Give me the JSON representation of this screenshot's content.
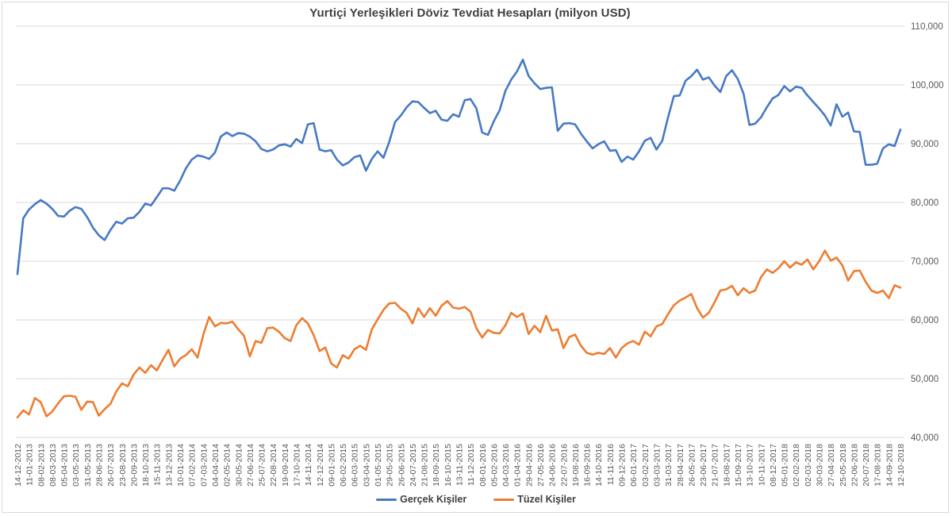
{
  "title": "Yurtiçi Yerleşikleri Döviz Tevdiat Hesapları (milyon USD)",
  "colors": {
    "series1": "#4779c4",
    "series2": "#ED7D31",
    "gridline": "#d9d9d9",
    "title_text": "#404040",
    "axis_text": "#595959",
    "background": "#ffffff"
  },
  "legend": {
    "position": "bottom",
    "items": [
      {
        "label": "Gerçek Kişiler",
        "color": "#4779c4"
      },
      {
        "label": "Tüzel Kişiler",
        "color": "#ED7D31"
      }
    ]
  },
  "y_axis": {
    "side": "right",
    "min": 40000,
    "max": 110000,
    "step": 10000,
    "tick_labels": [
      "40,000",
      "50,000",
      "60,000",
      "70,000",
      "80,000",
      "90,000",
      "100,000",
      "110,000"
    ]
  },
  "chart_data": {
    "type": "line",
    "title": "Yurtiçi Yerleşikleri Döviz Tevdiat Hesapları (milyon USD)",
    "xlabel": "",
    "ylabel": "",
    "ylim": [
      40000,
      110000
    ],
    "grid": true,
    "legend_position": "bottom",
    "x_tick_labels": [
      "14-12-2012",
      "11-01-2013",
      "08-02-2013",
      "08-03-2013",
      "05-04-2013",
      "03-05-2013",
      "31-05-2013",
      "28-06-2013",
      "26-07-2013",
      "23-08-2013",
      "20-09-2013",
      "18-10-2013",
      "15-11-2013",
      "13-12-2013",
      "10-01-2014",
      "07-02-2014",
      "07-03-2014",
      "04-04-2014",
      "02-05-2014",
      "30-05-2014",
      "27-06-2014",
      "25-07-2014",
      "22-08-2014",
      "19-09-2014",
      "17-10-2014",
      "14-11-2014",
      "12-12-2014",
      "09-01-2015",
      "06-02-2015",
      "06-03-2015",
      "03-04-2015",
      "01-05-2015",
      "29-05-2015",
      "26-06-2015",
      "24-07-2015",
      "21-08-2015",
      "18-09-2015",
      "16-10-2015",
      "13-11-2015",
      "11-12-2015",
      "08-01-2016",
      "05-02-2016",
      "04-03-2016",
      "01-04-2016",
      "29-04-2016",
      "27-05-2016",
      "24-06-2016",
      "22-07-2016",
      "19-08-2016",
      "16-09-2016",
      "14-10-2016",
      "11-11-2016",
      "09-12-2016",
      "06-01-2017",
      "03-02-2017",
      "03-03-2017",
      "31-03-2017",
      "28-04-2017",
      "26-05-2017",
      "23-06-2017",
      "21-07-2017",
      "18-08-2017",
      "15-09-2017",
      "13-10-2017",
      "10-11-2017",
      "08-12-2017",
      "05-01-2018",
      "02-02-2018",
      "02-03-2018",
      "30-03-2018",
      "27-04-2018",
      "25-05-2018",
      "22-06-2018",
      "20-07-2018",
      "17-08-2018",
      "14-09-2018",
      "12-10-2018"
    ],
    "points_per_label_interval": 2,
    "series": [
      {
        "name": "Gerçek Kişiler",
        "color": "#4779c4",
        "values": [
          67800,
          77300,
          78800,
          79700,
          80400,
          79800,
          78900,
          77700,
          77600,
          78600,
          79200,
          78900,
          77500,
          75700,
          74400,
          73600,
          75300,
          76700,
          76400,
          77300,
          77400,
          78400,
          79800,
          79500,
          80900,
          82400,
          82400,
          82000,
          83700,
          85800,
          87300,
          88000,
          87800,
          87400,
          88500,
          91200,
          91900,
          91300,
          91800,
          91700,
          91200,
          90400,
          89100,
          88700,
          89000,
          89700,
          89900,
          89500,
          90800,
          90100,
          93300,
          93500,
          89000,
          88700,
          88900,
          87300,
          86300,
          86800,
          87700,
          88000,
          85400,
          87400,
          88700,
          87600,
          90300,
          93700,
          94800,
          96200,
          97200,
          97100,
          96100,
          95200,
          95600,
          94100,
          93900,
          95000,
          94600,
          97400,
          97600,
          96000,
          91900,
          91500,
          93800,
          95700,
          99000,
          100900,
          102300,
          104300,
          101500,
          100300,
          99300,
          99500,
          99600,
          92200,
          93400,
          93500,
          93300,
          91700,
          90400,
          89200,
          89900,
          90400,
          88800,
          88900,
          86900,
          87800,
          87300,
          88700,
          90500,
          91000,
          89000,
          90500,
          94500,
          98100,
          98200,
          100700,
          101500,
          102600,
          100900,
          101300,
          99900,
          98800,
          101500,
          102500,
          101000,
          98500,
          93200,
          93400,
          94500,
          96200,
          97700,
          98300,
          99800,
          98900,
          99700,
          99500,
          98200,
          97100,
          96000,
          94800,
          93100,
          96700,
          94600,
          95300,
          92100,
          92000,
          86400,
          86400,
          86600,
          89200,
          89900,
          89600,
          92400
        ]
      },
      {
        "name": "Tüzel Kişiler",
        "color": "#ED7D31",
        "values": [
          43400,
          44600,
          43900,
          46700,
          46000,
          43600,
          44400,
          45800,
          47000,
          47100,
          46900,
          44700,
          46100,
          46000,
          43700,
          44800,
          45700,
          47800,
          49200,
          48700,
          50700,
          51900,
          51000,
          52300,
          51400,
          53200,
          54900,
          52100,
          53400,
          54000,
          55000,
          53600,
          57500,
          60500,
          58900,
          59500,
          59400,
          59700,
          58400,
          57300,
          53800,
          56400,
          56100,
          58600,
          58700,
          58000,
          56900,
          56400,
          59100,
          60300,
          59400,
          57400,
          54700,
          55300,
          52600,
          51900,
          54000,
          53400,
          55000,
          55600,
          54900,
          58400,
          60100,
          61700,
          62800,
          62900,
          61900,
          61200,
          59400,
          62000,
          60500,
          62000,
          60700,
          62400,
          63200,
          62100,
          61900,
          62200,
          61400,
          58600,
          57000,
          58300,
          57800,
          57700,
          59100,
          61200,
          60500,
          61100,
          57600,
          59000,
          57900,
          60700,
          58200,
          58400,
          55200,
          57100,
          57500,
          55600,
          54400,
          54100,
          54400,
          54200,
          55200,
          53600,
          55200,
          56000,
          56400,
          55800,
          58000,
          57200,
          58900,
          59300,
          61000,
          62500,
          63300,
          63800,
          64400,
          62000,
          60400,
          61200,
          63000,
          65000,
          65200,
          65800,
          64200,
          65400,
          64600,
          65000,
          67300,
          68600,
          68000,
          68800,
          70000,
          68900,
          69800,
          69400,
          70300,
          68600,
          70000,
          71800,
          70100,
          70600,
          69300,
          66700,
          68300,
          68400,
          66500,
          65000,
          64600,
          65000,
          63700,
          65900,
          65500
        ]
      }
    ]
  }
}
